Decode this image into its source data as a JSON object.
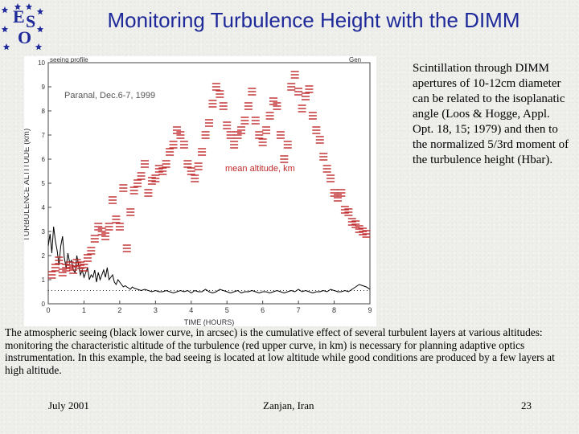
{
  "slide": {
    "title": "Monitoring Turbulence Height with the DIMM",
    "side_text": "Scintillation through DIMM apertures of 10-12cm diameter can be related to the isoplanatic angle (Loos & Hogge, Appl. Opt. 18, 15; 1979) and then to the normalized 5/3rd moment of the turbulence height (Hbar).",
    "caption": "The atmospheric seeing (black lower curve, in arcsec) is the cumulative effect of several turbulent layers at various altitudes: monitoring the characteristic altitude of the turbulence (red upper curve, in km) is necessary for planning adaptive optics instrumentation. In this example, the bad seeing is located at low altitude while good conditions are produced by a few layers at high altitude.",
    "footer": {
      "date": "July 2001",
      "place": "Zanjan, Iran",
      "page": "23"
    }
  },
  "logo": {
    "text": "ESO",
    "color": "#1f2a9a",
    "star_color": "#1f2a9a"
  },
  "colors": {
    "title": "#1f2a9a",
    "altitude": "#c0282a",
    "seeing": "#000000"
  },
  "chart_data": {
    "type": "scatter",
    "title": "seeing profile",
    "title_right": "Gen",
    "annotation": "Paranal, Dec.6-7, 1999",
    "series_label": "mean altitude, km",
    "ylabel": "TURBULENCE ALTITUDE (km)",
    "xlabel": "TIME (HOURS)",
    "xlim": [
      0,
      9
    ],
    "ylim": [
      0,
      10
    ],
    "x_ticks": [
      0,
      1,
      2,
      3,
      4,
      5,
      6,
      7,
      8,
      9
    ],
    "y_ticks": [
      0,
      1,
      2,
      3,
      4,
      5,
      6,
      7,
      8,
      9,
      10
    ],
    "series": [
      {
        "name": "mean altitude, km",
        "color": "#c0282a",
        "x": [
          0.1,
          0.2,
          0.3,
          0.4,
          0.5,
          0.6,
          0.7,
          0.8,
          0.9,
          1.0,
          1.1,
          1.2,
          1.3,
          1.4,
          1.5,
          1.6,
          1.7,
          1.8,
          1.9,
          2.0,
          2.1,
          2.2,
          2.3,
          2.4,
          2.5,
          2.6,
          2.7,
          2.8,
          2.9,
          3.0,
          3.1,
          3.2,
          3.3,
          3.4,
          3.5,
          3.6,
          3.7,
          3.8,
          3.9,
          4.0,
          4.1,
          4.2,
          4.3,
          4.4,
          4.5,
          4.6,
          4.7,
          4.8,
          4.9,
          5.0,
          5.1,
          5.2,
          5.3,
          5.4,
          5.5,
          5.6,
          5.7,
          5.8,
          5.9,
          6.0,
          6.1,
          6.2,
          6.3,
          6.4,
          6.5,
          6.6,
          6.7,
          6.8,
          6.9,
          7.0,
          7.1,
          7.2,
          7.3,
          7.4,
          7.5,
          7.6,
          7.7,
          7.8,
          7.9,
          8.0,
          8.1,
          8.2,
          8.3,
          8.4,
          8.5,
          8.6,
          8.7,
          8.8,
          8.9
        ],
        "y": [
          1.2,
          1.5,
          1.8,
          1.3,
          1.5,
          1.6,
          1.4,
          1.7,
          1.6,
          1.5,
          1.9,
          2.2,
          2.7,
          3.2,
          3.0,
          2.8,
          3.2,
          4.3,
          3.5,
          3.2,
          4.8,
          2.3,
          3.8,
          4.7,
          5.0,
          5.3,
          5.8,
          4.6,
          5.1,
          5.2,
          5.6,
          5.5,
          5.8,
          6.3,
          6.6,
          7.2,
          7.0,
          6.6,
          5.8,
          5.5,
          5.2,
          5.7,
          6.3,
          7.0,
          7.5,
          8.3,
          9.0,
          8.7,
          8.2,
          7.4,
          7.0,
          6.6,
          7.0,
          7.2,
          7.6,
          8.2,
          8.8,
          7.6,
          7.0,
          6.7,
          7.2,
          7.8,
          8.4,
          8.2,
          7.0,
          6.0,
          6.6,
          9.0,
          9.5,
          8.8,
          8.1,
          8.6,
          8.9,
          7.8,
          7.2,
          6.8,
          6.1,
          5.6,
          5.2,
          4.6,
          4.4,
          4.6,
          3.9,
          3.8,
          3.4,
          3.3,
          3.1,
          3.0,
          2.9
        ]
      },
      {
        "name": "seeing, arcsec",
        "color": "#000000",
        "x": [
          0.0,
          0.05,
          0.1,
          0.15,
          0.2,
          0.25,
          0.3,
          0.35,
          0.4,
          0.45,
          0.5,
          0.55,
          0.6,
          0.65,
          0.7,
          0.75,
          0.8,
          0.85,
          0.9,
          0.95,
          1.0,
          1.05,
          1.1,
          1.15,
          1.2,
          1.25,
          1.3,
          1.35,
          1.4,
          1.45,
          1.5,
          1.55,
          1.6,
          1.65,
          1.7,
          1.75,
          1.8,
          1.85,
          1.9,
          1.95,
          2.0,
          2.05,
          2.1,
          2.15,
          2.2,
          2.25,
          2.3,
          2.35,
          2.4,
          2.5,
          2.6,
          2.7,
          2.8,
          2.9,
          3.0,
          3.1,
          3.2,
          3.3,
          3.4,
          3.5,
          3.6,
          3.7,
          3.8,
          3.9,
          4.0,
          4.1,
          4.2,
          4.3,
          4.4,
          4.5,
          4.6,
          4.7,
          4.8,
          4.9,
          5.0,
          5.1,
          5.2,
          5.3,
          5.4,
          5.5,
          5.6,
          5.7,
          5.8,
          5.9,
          6.0,
          6.1,
          6.2,
          6.3,
          6.4,
          6.5,
          6.6,
          6.7,
          6.8,
          6.9,
          7.0,
          7.1,
          7.2,
          7.3,
          7.4,
          7.5,
          7.6,
          7.7,
          7.8,
          7.9,
          8.0,
          8.1,
          8.2,
          8.3,
          8.4,
          8.5,
          8.6,
          8.7,
          8.8,
          8.9,
          9.0
        ],
        "y": [
          2.4,
          2.9,
          2.1,
          3.2,
          2.6,
          2.2,
          1.6,
          2.4,
          2.8,
          1.9,
          1.5,
          2.1,
          1.7,
          1.8,
          1.4,
          1.3,
          2.0,
          1.6,
          1.2,
          1.4,
          1.1,
          1.3,
          1.5,
          1.0,
          1.2,
          1.1,
          1.4,
          0.9,
          1.3,
          1.0,
          1.2,
          1.4,
          1.1,
          1.5,
          1.0,
          1.1,
          1.2,
          0.9,
          0.8,
          1.0,
          0.9,
          0.8,
          0.7,
          0.75,
          0.7,
          0.65,
          0.6,
          0.7,
          0.65,
          0.6,
          0.55,
          0.6,
          0.55,
          0.5,
          0.55,
          0.5,
          0.5,
          0.55,
          0.5,
          0.45,
          0.5,
          0.55,
          0.5,
          0.55,
          0.45,
          0.55,
          0.5,
          0.5,
          0.6,
          0.5,
          0.45,
          0.5,
          0.6,
          0.55,
          0.5,
          0.45,
          0.5,
          0.55,
          0.45,
          0.5,
          0.5,
          0.55,
          0.5,
          0.45,
          0.5,
          0.5,
          0.45,
          0.5,
          0.55,
          0.5,
          0.45,
          0.5,
          0.55,
          0.5,
          0.6,
          0.5,
          0.55,
          0.5,
          0.45,
          0.5,
          0.5,
          0.55,
          0.5,
          0.6,
          0.55,
          0.5,
          0.5,
          0.55,
          0.5,
          0.6,
          0.7,
          0.8,
          0.75,
          0.7,
          0.6
        ]
      }
    ],
    "reference_line": {
      "y": 0.55,
      "style": "dotted"
    }
  }
}
